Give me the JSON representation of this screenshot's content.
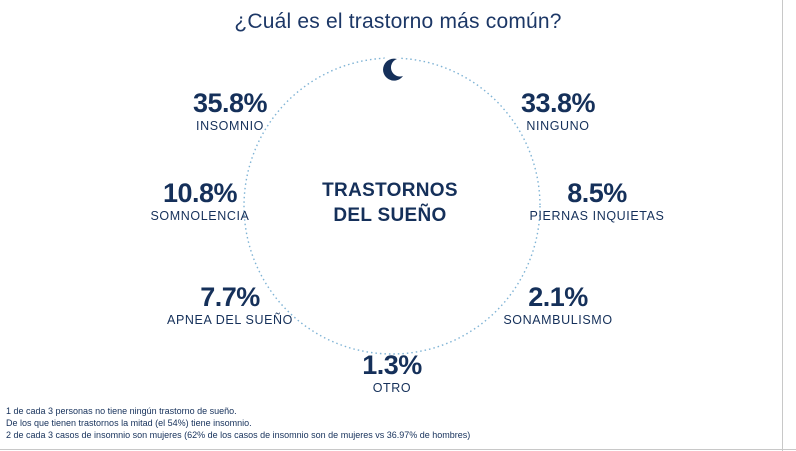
{
  "title": "¿Cuál es el trastorno más común?",
  "center_label": {
    "line1": "TRASTORNOS",
    "line2": "DEL SUEÑO"
  },
  "icon": "crescent-moon-icon",
  "colors": {
    "primary": "#15305a",
    "ring": "#7fb3d5"
  },
  "chart_data": {
    "type": "pie",
    "title": "¿Cuál es el trastorno más común?",
    "categories": [
      "INSOMNIO",
      "NINGUNO",
      "SOMNOLENCIA",
      "PIERNAS INQUIETAS",
      "APNEA DEL SUEÑO",
      "SONAMBULISMO",
      "OTRO"
    ],
    "values": [
      35.8,
      33.8,
      10.8,
      8.5,
      7.7,
      2.1,
      1.3
    ],
    "display_values": [
      "35.8%",
      "33.8%",
      "10.8%",
      "8.5%",
      "7.7%",
      "2.1%",
      "1.3%"
    ],
    "unit": "%"
  },
  "notes": [
    "1 de cada 3 personas no tiene ningún trastorno de sueño.",
    "De los que tienen trastornos la mitad (el 54%) tiene insomnio.",
    "2 de cada 3 casos de insomnio son mujeres (62% de los casos de insomnio son de mujeres vs 36.97% de hombres)"
  ]
}
